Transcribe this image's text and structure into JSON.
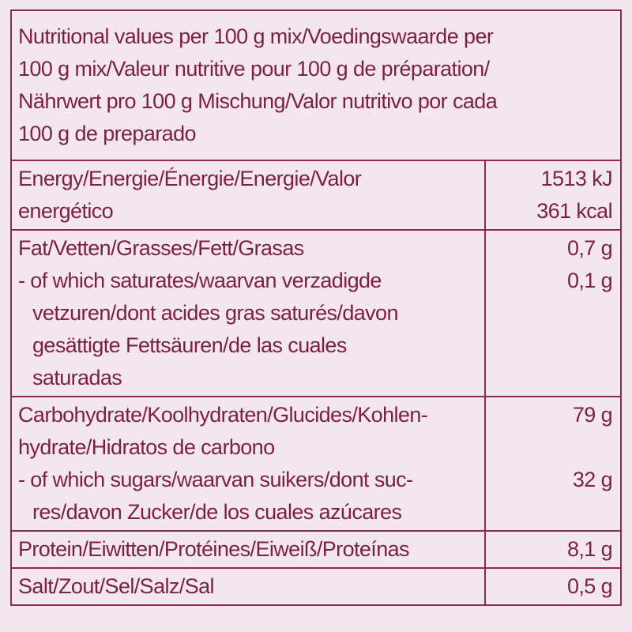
{
  "header": {
    "lines": [
      "Nutritional values per 100 g mix/Voedingswaarde per",
      "100 g mix/Valeur nutritive pour 100 g de préparation/",
      "Nährwert pro 100 g Mischung/Valor nutritivo por cada",
      "100 g de preparado"
    ]
  },
  "table": {
    "rows": [
      {
        "items": [
          {
            "label": [
              "Energy/Energie/Énergie/Energie/Valor",
              "energético"
            ],
            "value": [
              "1513 kJ",
              "361 kcal"
            ]
          }
        ]
      },
      {
        "items": [
          {
            "label": [
              "Fat/Vetten/Grasses/Fett/Grasas"
            ],
            "value": [
              "0,7 g"
            ]
          },
          {
            "label": [
              "- of which saturates/waarvan verzadigde",
              "vetzuren/dont acides gras saturés/davon",
              "gesättigte Fettsäuren/de las cuales",
              "saturadas"
            ],
            "value": [
              "0,1 g"
            ]
          }
        ]
      },
      {
        "items": [
          {
            "label": [
              "Carbohydrate/Koolhydraten/Glucides/Kohlen-",
              "hydrate/Hidratos de carbono"
            ],
            "value": [
              "79 g"
            ]
          },
          {
            "label": [
              "- of which sugars/waarvan suikers/dont suc-",
              "res/davon Zucker/de los cuales azúcares"
            ],
            "value": [
              "32 g"
            ]
          }
        ]
      },
      {
        "items": [
          {
            "label": [
              "Protein/Eiwitten/Protéines/Eiweiß/Proteínas"
            ],
            "value": [
              "8,1 g"
            ]
          }
        ]
      },
      {
        "items": [
          {
            "label": [
              "Salt/Zout/Sel/Salz/Sal"
            ],
            "value": [
              "0,5 g"
            ]
          }
        ]
      }
    ]
  }
}
